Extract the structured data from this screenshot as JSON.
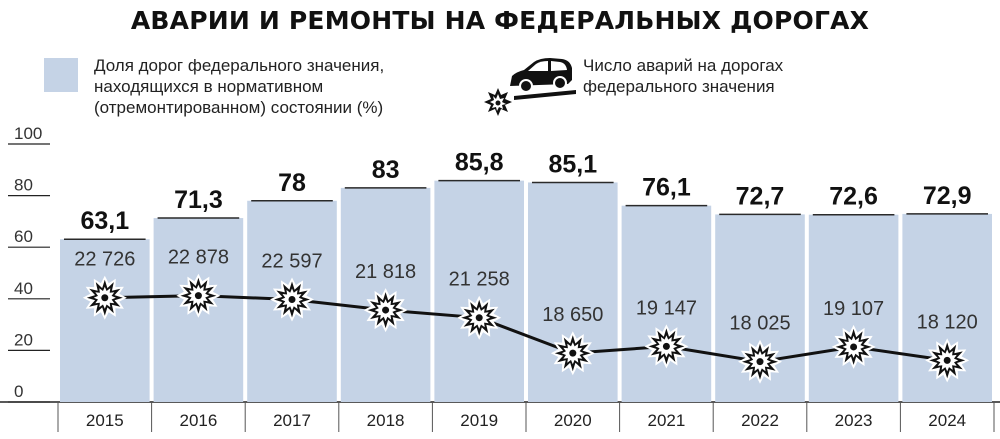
{
  "title": "АВАРИИ И РЕМОНТЫ НА ФЕДЕРАЛЬНЫХ ДОРОГАХ",
  "legend": {
    "bars": "Доля дорог федерального значения, находящихся в нормативном (отремонтированном) состоянии (%)",
    "line": "Число аварий на дорогах федерального значения",
    "bar_color": "#c5d3e6",
    "line_icon": "car-crash-icon"
  },
  "chart_data": {
    "type": "bar",
    "categories": [
      "2015",
      "2016",
      "2017",
      "2018",
      "2019",
      "2020",
      "2021",
      "2022",
      "2023",
      "2024"
    ],
    "ylim": [
      0,
      100
    ],
    "yticks": [
      0,
      20,
      40,
      60,
      80,
      100
    ],
    "grid": false,
    "series": [
      {
        "type": "bar",
        "values": [
          63.1,
          71.3,
          78,
          83,
          85.8,
          85.1,
          76.1,
          72.7,
          72.6,
          72.9
        ],
        "labels": [
          "63,1",
          "71,3",
          "78",
          "83",
          "85,8",
          "85,1",
          "76,1",
          "72,7",
          "72,6",
          "72,9"
        ]
      },
      {
        "type": "line",
        "values": [
          22726,
          22878,
          22597,
          21818,
          21258,
          18650,
          19147,
          18025,
          19107,
          18120
        ],
        "labels": [
          "22 726",
          "22 878",
          "22 597",
          "21 818",
          "21 258",
          "18 650",
          "19 147",
          "18 025",
          "19 107",
          "18 120"
        ],
        "marker": "burst-icon"
      }
    ]
  }
}
